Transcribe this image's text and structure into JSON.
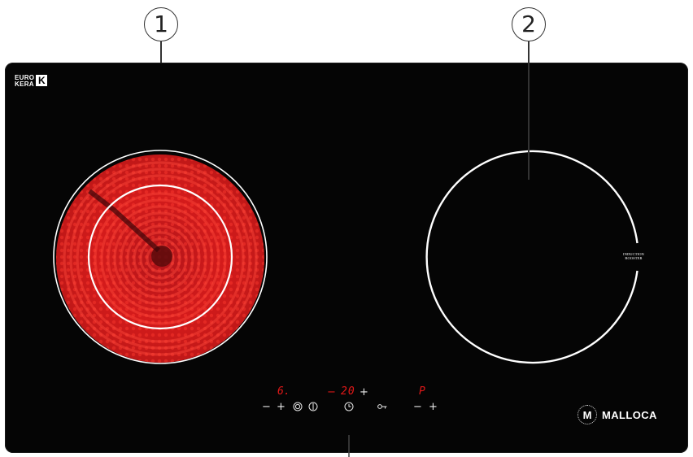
{
  "callouts": [
    {
      "label": "1"
    },
    {
      "label": "2"
    }
  ],
  "logo": {
    "line1": "EURO",
    "line2": "KERA",
    "mark": "K"
  },
  "right_zone": {
    "label_line1": "INDUCTION",
    "label_line2": "BOOSTER"
  },
  "controls": {
    "left_display": "6.",
    "center_display": "20",
    "right_display": "P",
    "minus": "−",
    "plus": "+",
    "dual_zone_icon": "dual-circle-icon",
    "power_icon": "power-icon",
    "timer_icon": "timer-icon",
    "lock_icon": "key-lock-icon"
  },
  "brand": {
    "badge": "M",
    "name": "MALLOCA"
  },
  "colors": {
    "glass": "#050505",
    "heat": "#e01818",
    "ring": "#ffffff"
  }
}
